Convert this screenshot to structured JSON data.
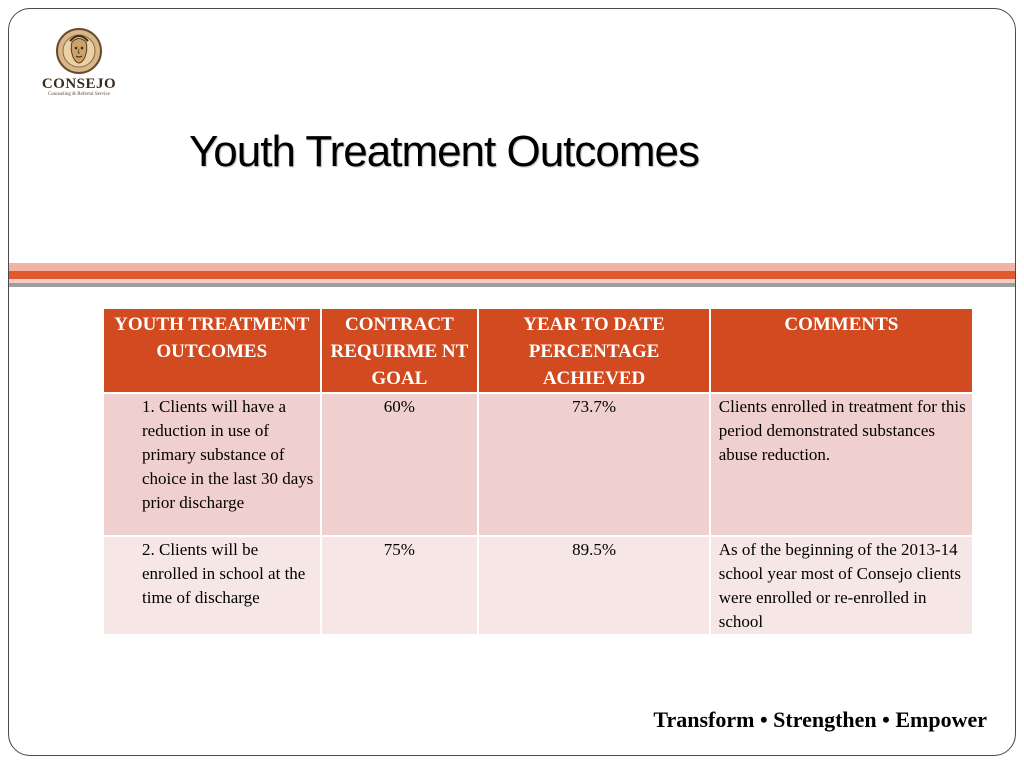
{
  "logo": {
    "name": "CONSEJO",
    "tagline": "Counseling & Referral Service"
  },
  "title": "Youth Treatment Outcomes",
  "table": {
    "headers": [
      "YOUTH TREATMENT OUTCOMES",
      "CONTRACT REQUIRME NT GOAL",
      "YEAR TO DATE PERCENTAGE ACHIEVED",
      "COMMENTS"
    ],
    "rows": [
      {
        "outcome": "1. Clients will have a reduction in use of primary substance of choice in the last 30 days prior discharge",
        "goal": "60%",
        "ytd": "73.7%",
        "comment": "Clients enrolled in treatment for this period demonstrated substances abuse reduction."
      },
      {
        "outcome": "2. Clients will be enrolled in school at the time of discharge",
        "goal": "75%",
        "ytd": "89.5%",
        "comment": "As of the beginning of the 2013-14 school year most of Consejo clients were enrolled or re-enrolled in school"
      }
    ]
  },
  "footer": "Transform • Strengthen • Empower",
  "colors": {
    "header_fill": "#d24a1f",
    "row_odd": "#f0d0ce",
    "row_even": "#f6e7e6",
    "accent_band": "#e15a2e"
  }
}
